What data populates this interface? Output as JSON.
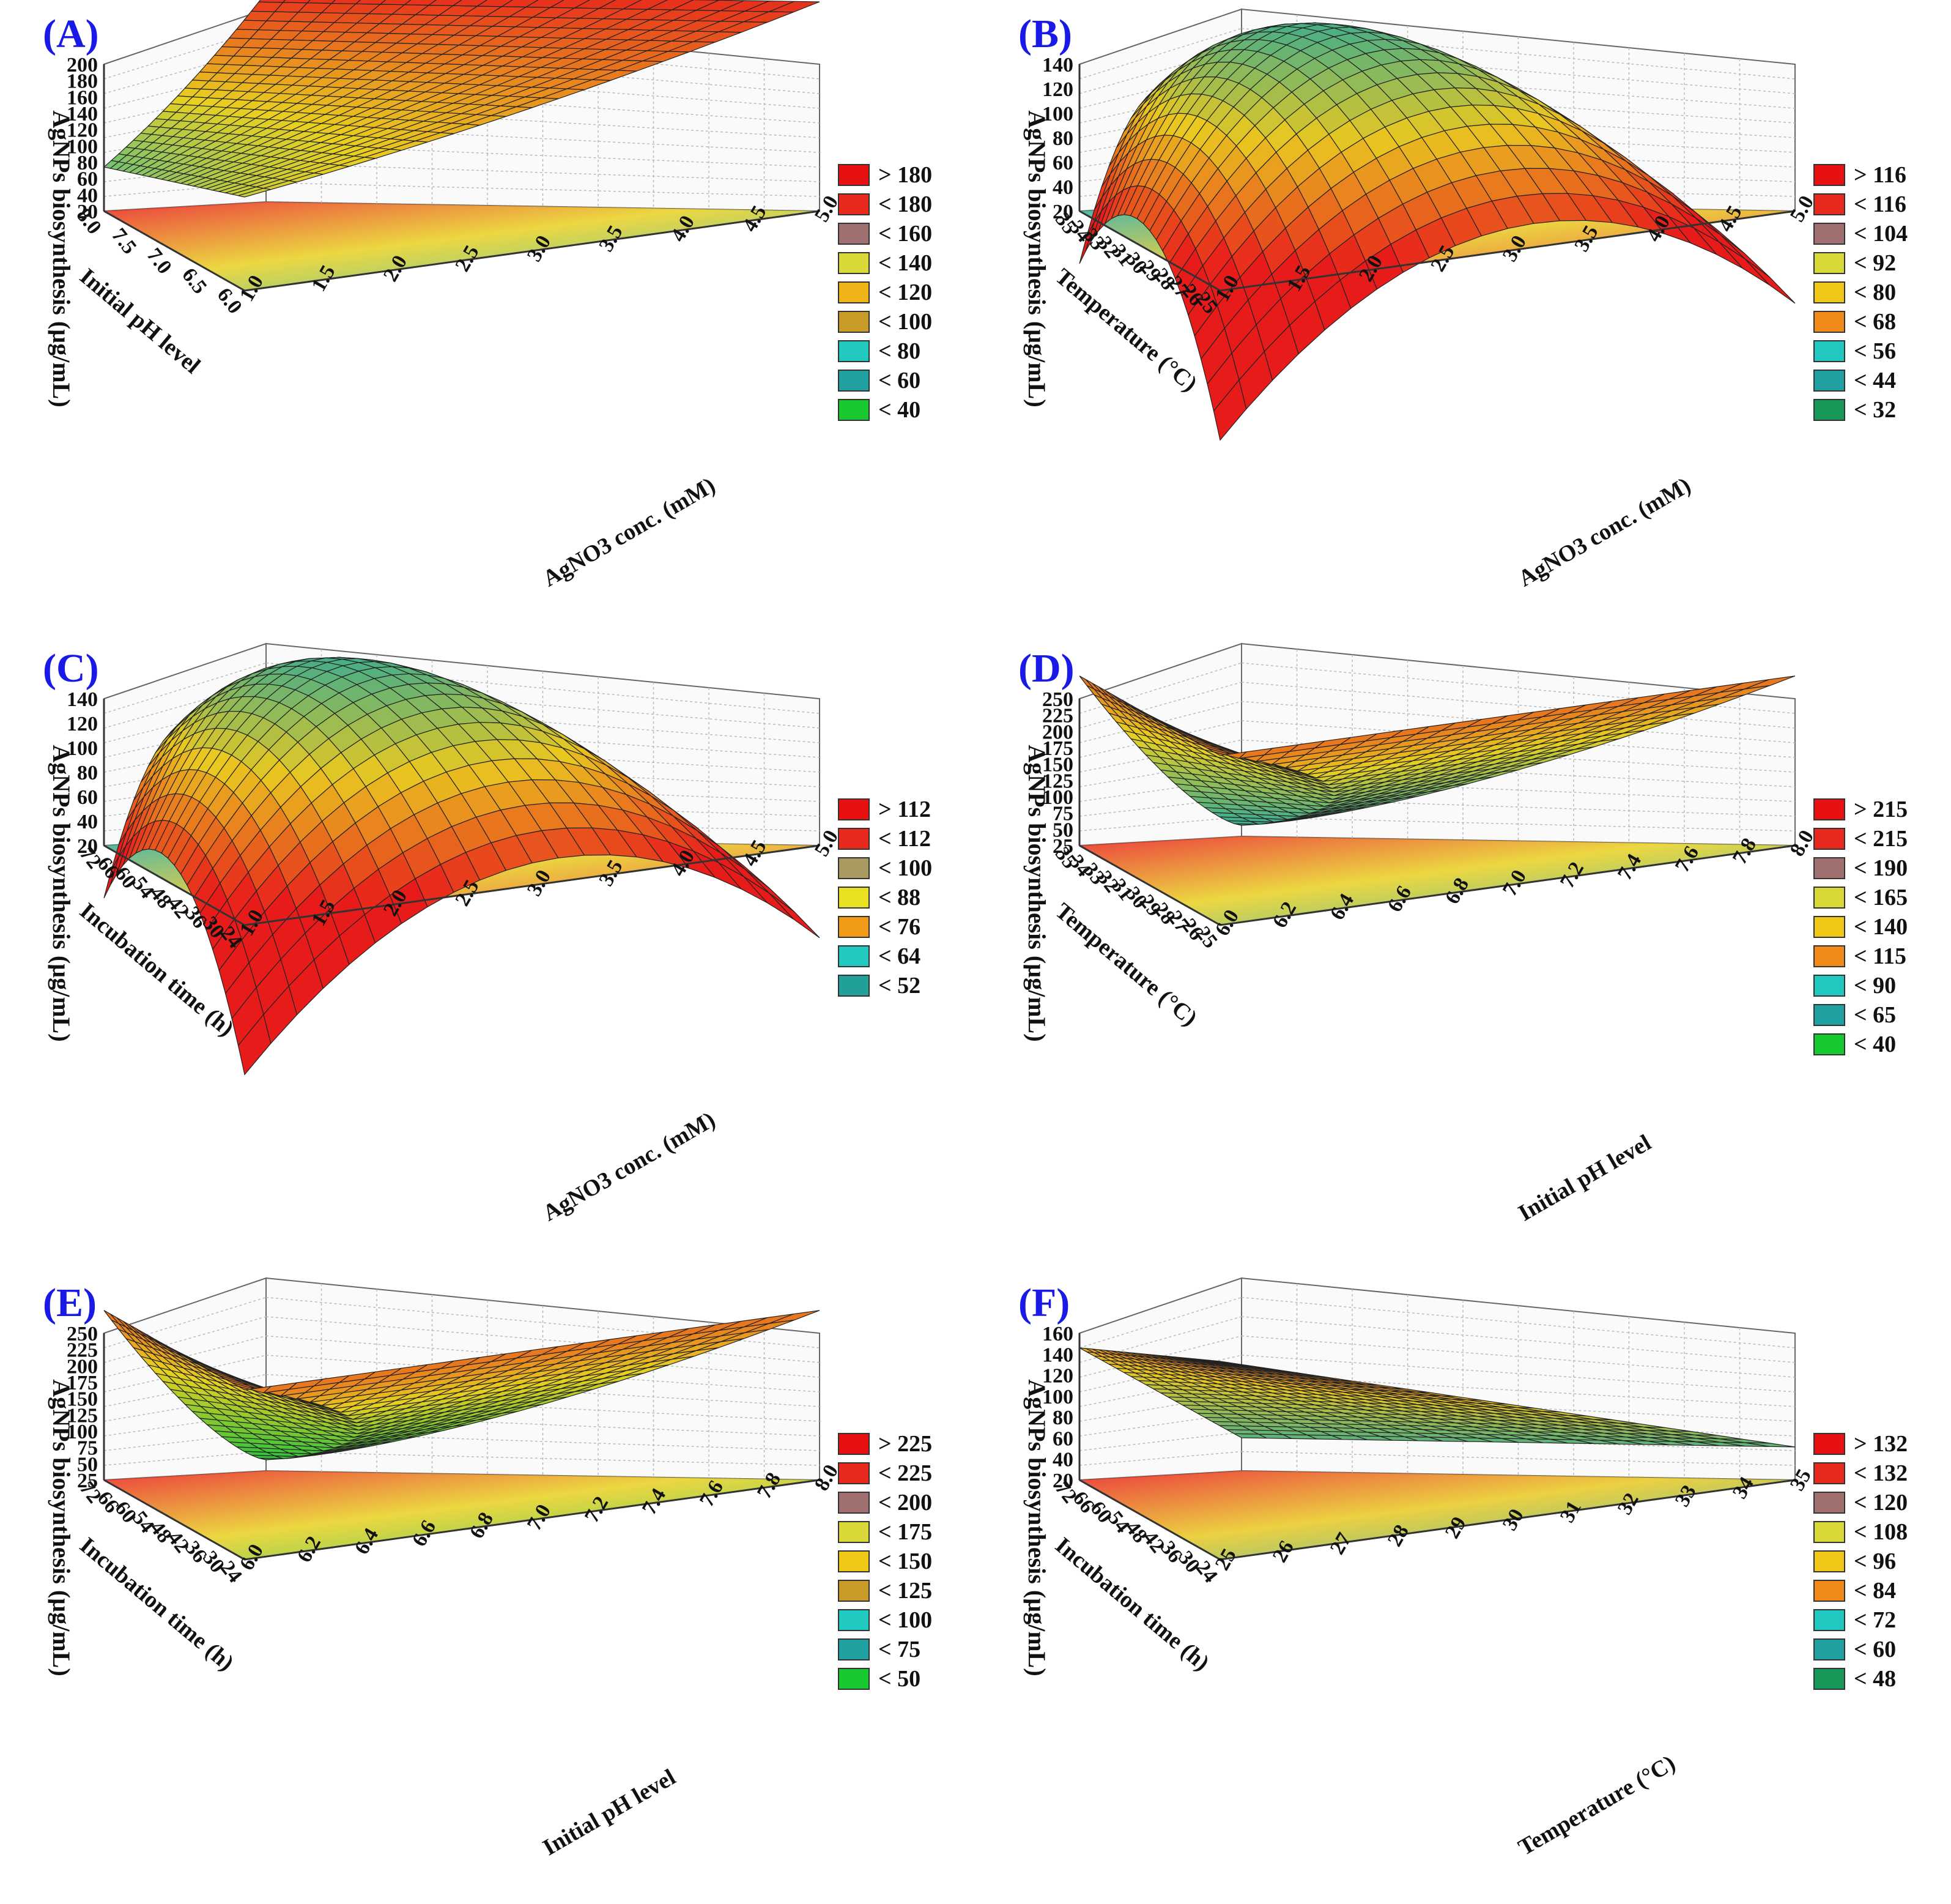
{
  "panels": [
    {
      "label": "(A)",
      "zlabel": "AgNPs biosynthesis (µg/mL)",
      "left_axis_label": "Initial pH level",
      "right_axis_label": "AgNO3 conc. (mM)",
      "z_ticks": [
        "200",
        "180",
        "160",
        "140",
        "120",
        "100",
        "80",
        "60",
        "40",
        "20"
      ],
      "left_ticks": [
        "8.0",
        "7.5",
        "7.0",
        "6.5",
        "6.0"
      ],
      "right_ticks": [
        "1.0",
        "1.5",
        "2.0",
        "2.5",
        "3.0",
        "3.5",
        "4.0",
        "4.5",
        "5.0"
      ],
      "legend": [
        {
          "text": "> 180",
          "color": "#e81010"
        },
        {
          "text": "< 180",
          "color": "#e8291e"
        },
        {
          "text": "< 160",
          "color": "#a07070"
        },
        {
          "text": "< 140",
          "color": "#d8d838"
        },
        {
          "text": "< 120",
          "color": "#f0b418"
        },
        {
          "text": "< 100",
          "color": "#c89a28"
        },
        {
          "text": "< 80",
          "color": "#20c8c0"
        },
        {
          "text": "< 60",
          "color": "#20a0a0"
        },
        {
          "text": "< 40",
          "color": "#18c830"
        }
      ],
      "surface": {
        "c0": "#e81b1b",
        "c1": "#e9d020",
        "c2": "#20b8b0"
      }
    },
    {
      "label": "(B)",
      "zlabel": "AgNPs biosynthesis (µg/mL)",
      "left_axis_label": "Temperature (°C)",
      "right_axis_label": "AgNO3 conc. (mM)",
      "z_ticks": [
        "140",
        "120",
        "100",
        "80",
        "60",
        "40",
        "20"
      ],
      "left_ticks": [
        "35",
        "34",
        "33",
        "32",
        "31",
        "30",
        "29",
        "28",
        "27",
        "26",
        "25"
      ],
      "right_ticks": [
        "1.0",
        "1.5",
        "2.0",
        "2.5",
        "3.0",
        "3.5",
        "4.0",
        "4.5",
        "5.0"
      ],
      "legend": [
        {
          "text": "> 116",
          "color": "#e81010"
        },
        {
          "text": "< 116",
          "color": "#e8291e"
        },
        {
          "text": "< 104",
          "color": "#a07070"
        },
        {
          "text": "< 92",
          "color": "#d8d838"
        },
        {
          "text": "< 80",
          "color": "#f0c818"
        },
        {
          "text": "< 68",
          "color": "#f08a18"
        },
        {
          "text": "< 56",
          "color": "#20c8c0"
        },
        {
          "text": "< 44",
          "color": "#20a0a0"
        },
        {
          "text": "< 32",
          "color": "#189858"
        }
      ],
      "surface": {
        "c0": "#20a8a0",
        "c1": "#e9c820",
        "c2": "#e81b1b"
      }
    },
    {
      "label": "(C)",
      "zlabel": "AgNPs biosynthesis (µg/mL)",
      "left_axis_label": "Incubation time (h)",
      "right_axis_label": "AgNO3 conc. (mM)",
      "z_ticks": [
        "140",
        "120",
        "100",
        "80",
        "60",
        "40",
        "20"
      ],
      "left_ticks": [
        "72",
        "66",
        "60",
        "54",
        "48",
        "42",
        "36",
        "30",
        "24"
      ],
      "right_ticks": [
        "1.0",
        "1.5",
        "2.0",
        "2.5",
        "3.0",
        "3.5",
        "4.0",
        "4.5",
        "5.0"
      ],
      "legend": [
        {
          "text": "> 112",
          "color": "#e81010"
        },
        {
          "text": "< 112",
          "color": "#e8291e"
        },
        {
          "text": "< 100",
          "color": "#a89a60"
        },
        {
          "text": "< 88",
          "color": "#e8e020"
        },
        {
          "text": "< 76",
          "color": "#f09a18"
        },
        {
          "text": "< 64",
          "color": "#20c8c0"
        },
        {
          "text": "< 52",
          "color": "#20a098"
        }
      ],
      "surface": {
        "c0": "#20a8a0",
        "c1": "#e9c820",
        "c2": "#e81b1b"
      }
    },
    {
      "label": "(D)",
      "zlabel": "AgNPs biosynthesis (µg/mL)",
      "left_axis_label": "Temperature (°C)",
      "right_axis_label": "Initial pH level",
      "z_ticks": [
        "250",
        "225",
        "200",
        "175",
        "150",
        "125",
        "100",
        "75",
        "50",
        "25"
      ],
      "left_ticks": [
        "35",
        "34",
        "33",
        "32",
        "31",
        "30",
        "29",
        "28",
        "27",
        "26",
        "25"
      ],
      "right_ticks": [
        "6.0",
        "6.2",
        "6.4",
        "6.6",
        "6.8",
        "7.0",
        "7.2",
        "7.4",
        "7.6",
        "7.8",
        "8.0"
      ],
      "legend": [
        {
          "text": "> 215",
          "color": "#e81010"
        },
        {
          "text": "< 215",
          "color": "#e8291e"
        },
        {
          "text": "< 190",
          "color": "#a07070"
        },
        {
          "text": "< 165",
          "color": "#d8d838"
        },
        {
          "text": "< 140",
          "color": "#f0c818"
        },
        {
          "text": "< 115",
          "color": "#f08a18"
        },
        {
          "text": "< 90",
          "color": "#20c8c0"
        },
        {
          "text": "< 65",
          "color": "#20a0a0"
        },
        {
          "text": "< 40",
          "color": "#18c830"
        }
      ],
      "surface": {
        "c0": "#e81b1b",
        "c1": "#e9d020",
        "c2": "#20a8a0"
      }
    },
    {
      "label": "(E)",
      "zlabel": "AgNPs biosynthesis (µg/mL)",
      "left_axis_label": "Incubation time (h)",
      "right_axis_label": "Initial pH level",
      "z_ticks": [
        "250",
        "225",
        "200",
        "175",
        "150",
        "125",
        "100",
        "75",
        "50",
        "25"
      ],
      "left_ticks": [
        "72",
        "66",
        "60",
        "54",
        "48",
        "42",
        "36",
        "30",
        "24"
      ],
      "right_ticks": [
        "6.0",
        "6.2",
        "6.4",
        "6.6",
        "6.8",
        "7.0",
        "7.2",
        "7.4",
        "7.6",
        "7.8",
        "8.0"
      ],
      "legend": [
        {
          "text": "> 225",
          "color": "#e81010"
        },
        {
          "text": "< 225",
          "color": "#e8291e"
        },
        {
          "text": "< 200",
          "color": "#a07070"
        },
        {
          "text": "< 175",
          "color": "#d8d838"
        },
        {
          "text": "< 150",
          "color": "#f0c818"
        },
        {
          "text": "< 125",
          "color": "#c89a28"
        },
        {
          "text": "< 100",
          "color": "#20c8c0"
        },
        {
          "text": "< 75",
          "color": "#20a0a0"
        },
        {
          "text": "< 50",
          "color": "#18c830"
        }
      ],
      "surface": {
        "c0": "#e81b1b",
        "c1": "#e9d020",
        "c2": "#18c040"
      }
    },
    {
      "label": "(F)",
      "zlabel": "AgNPs biosynthesis (µg/mL)",
      "left_axis_label": "Incubation time (h)",
      "right_axis_label": "Temperature (°C)",
      "z_ticks": [
        "160",
        "140",
        "120",
        "100",
        "80",
        "60",
        "40",
        "20"
      ],
      "left_ticks": [
        "72",
        "66",
        "60",
        "54",
        "48",
        "42",
        "36",
        "30",
        "24"
      ],
      "right_ticks": [
        "25",
        "26",
        "27",
        "28",
        "29",
        "30",
        "31",
        "32",
        "33",
        "34",
        "35"
      ],
      "legend": [
        {
          "text": "> 132",
          "color": "#e81010"
        },
        {
          "text": "< 132",
          "color": "#e8291e"
        },
        {
          "text": "< 120",
          "color": "#a07070"
        },
        {
          "text": "< 108",
          "color": "#d8d838"
        },
        {
          "text": "< 96",
          "color": "#f0c818"
        },
        {
          "text": "< 84",
          "color": "#f08a18"
        },
        {
          "text": "< 72",
          "color": "#20c8c0"
        },
        {
          "text": "< 60",
          "color": "#20a0a0"
        },
        {
          "text": "< 48",
          "color": "#189858"
        }
      ],
      "surface": {
        "c0": "#e81b1b",
        "c1": "#e9c820",
        "c2": "#20a8a0"
      }
    }
  ],
  "chart_data": [
    {
      "type": "surface3d",
      "title": "(A)",
      "xlabel": "AgNO3 conc. (mM)",
      "ylabel": "Initial pH level",
      "zlabel": "AgNPs biosynthesis (µg/mL)",
      "xlim": [
        1.0,
        5.0
      ],
      "ylim": [
        6.0,
        8.0
      ],
      "zlim": [
        20,
        200
      ],
      "legend_levels": [
        "> 180",
        "< 180",
        "< 160",
        "< 140",
        "< 120",
        "< 100",
        "< 80",
        "< 60",
        "< 40"
      ]
    },
    {
      "type": "surface3d",
      "title": "(B)",
      "xlabel": "AgNO3 conc. (mM)",
      "ylabel": "Temperature (°C)",
      "zlabel": "AgNPs biosynthesis (µg/mL)",
      "xlim": [
        1.0,
        5.0
      ],
      "ylim": [
        25,
        35
      ],
      "zlim": [
        20,
        140
      ],
      "legend_levels": [
        "> 116",
        "< 116",
        "< 104",
        "< 92",
        "< 80",
        "< 68",
        "< 56",
        "< 44",
        "< 32"
      ]
    },
    {
      "type": "surface3d",
      "title": "(C)",
      "xlabel": "AgNO3 conc. (mM)",
      "ylabel": "Incubation time (h)",
      "zlabel": "AgNPs biosynthesis (µg/mL)",
      "xlim": [
        1.0,
        5.0
      ],
      "ylim": [
        24,
        72
      ],
      "zlim": [
        20,
        140
      ],
      "legend_levels": [
        "> 112",
        "< 112",
        "< 100",
        "< 88",
        "< 76",
        "< 64",
        "< 52"
      ]
    },
    {
      "type": "surface3d",
      "title": "(D)",
      "xlabel": "Initial pH level",
      "ylabel": "Temperature (°C)",
      "zlabel": "AgNPs biosynthesis (µg/mL)",
      "xlim": [
        6.0,
        8.0
      ],
      "ylim": [
        25,
        35
      ],
      "zlim": [
        25,
        250
      ],
      "legend_levels": [
        "> 215",
        "< 215",
        "< 190",
        "< 165",
        "< 140",
        "< 115",
        "< 90",
        "< 65",
        "< 40"
      ]
    },
    {
      "type": "surface3d",
      "title": "(E)",
      "xlabel": "Initial pH level",
      "ylabel": "Incubation time (h)",
      "zlabel": "AgNPs biosynthesis (µg/mL)",
      "xlim": [
        6.0,
        8.0
      ],
      "ylim": [
        24,
        72
      ],
      "zlim": [
        25,
        250
      ],
      "legend_levels": [
        "> 225",
        "< 225",
        "< 200",
        "< 175",
        "< 150",
        "< 125",
        "< 100",
        "< 75",
        "< 50"
      ]
    },
    {
      "type": "surface3d",
      "title": "(F)",
      "xlabel": "Temperature (°C)",
      "ylabel": "Incubation time (h)",
      "zlabel": "AgNPs biosynthesis (µg/mL)",
      "xlim": [
        25,
        35
      ],
      "ylim": [
        24,
        72
      ],
      "zlim": [
        20,
        160
      ],
      "legend_levels": [
        "> 132",
        "< 132",
        "< 120",
        "< 108",
        "< 96",
        "< 84",
        "< 72",
        "< 60",
        "< 48"
      ]
    }
  ]
}
